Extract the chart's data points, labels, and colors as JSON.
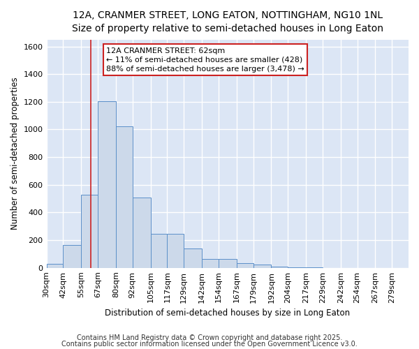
{
  "title_line1": "12A, CRANMER STREET, LONG EATON, NOTTINGHAM, NG10 1NL",
  "title_line2": "Size of property relative to semi-detached houses in Long Eaton",
  "xlabel": "Distribution of semi-detached houses by size in Long Eaton",
  "ylabel": "Number of semi-detached properties",
  "bar_color": "#ccd9ea",
  "bar_edge_color": "#5b8fc9",
  "background_color": "#dce6f5",
  "grid_color": "#ffffff",
  "fig_background": "#ffffff",
  "bin_edges": [
    30,
    42,
    55,
    67,
    80,
    92,
    105,
    117,
    129,
    142,
    154,
    167,
    179,
    192,
    204,
    217,
    229,
    242,
    254,
    267,
    279
  ],
  "bar_heights": [
    30,
    163,
    528,
    1205,
    1025,
    508,
    247,
    247,
    140,
    65,
    65,
    32,
    22,
    10,
    5,
    2,
    0,
    0,
    0,
    0
  ],
  "property_size": 62,
  "annotation_line1": "12A CRANMER STREET: 62sqm",
  "annotation_line2": "← 11% of semi-detached houses are smaller (428)",
  "annotation_line3": "88% of semi-detached houses are larger (3,478) →",
  "ylim": [
    0,
    1650
  ],
  "yticks": [
    0,
    200,
    400,
    600,
    800,
    1000,
    1200,
    1400,
    1600
  ],
  "footnote_line1": "Contains HM Land Registry data © Crown copyright and database right 2025.",
  "footnote_line2": "Contains public sector information licensed under the Open Government Licence v3.0.",
  "red_line_color": "#cc2222",
  "annotation_box_edge_color": "#cc2222",
  "title_fontsize": 10,
  "subtitle_fontsize": 8.5,
  "axis_label_fontsize": 8.5,
  "tick_fontsize": 8,
  "annotation_fontsize": 8,
  "footnote_fontsize": 7
}
